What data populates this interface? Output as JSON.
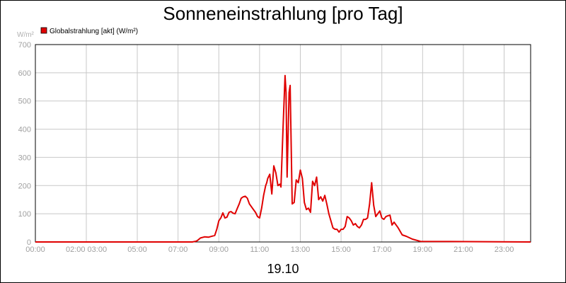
{
  "chart_data": {
    "type": "line",
    "title": "Sonneneinstrahlung [pro Tag]",
    "ylabel": "W/m²",
    "xlabel": "19.10",
    "ylim": [
      0,
      700
    ],
    "xlim": [
      0,
      24.3
    ],
    "yticks": [
      0,
      100,
      200,
      300,
      400,
      500,
      600,
      700
    ],
    "xticks": [
      {
        "label": "00:00",
        "value": 0
      },
      {
        "label": "02:00 03:00",
        "value": 2.5
      },
      {
        "label": "05:00",
        "value": 5
      },
      {
        "label": "07:00",
        "value": 7
      },
      {
        "label": "09:00",
        "value": 9
      },
      {
        "label": "11:00",
        "value": 11
      },
      {
        "label": "13:00",
        "value": 13
      },
      {
        "label": "15:00",
        "value": 15
      },
      {
        "label": "17:00",
        "value": 17
      },
      {
        "label": "19:00",
        "value": 19
      },
      {
        "label": "21:00",
        "value": 21
      },
      {
        "label": "23:00",
        "value": 23
      }
    ],
    "grid": true,
    "legend_position": "top-left",
    "series": [
      {
        "name": "Globalstrahlung [akt] (W/m²)",
        "color": "#e00000",
        "x": [
          0,
          7.7,
          7.9,
          8.0,
          8.1,
          8.3,
          8.5,
          8.8,
          8.9,
          9.0,
          9.1,
          9.2,
          9.3,
          9.4,
          9.5,
          9.6,
          9.7,
          9.8,
          9.9,
          10.0,
          10.1,
          10.2,
          10.3,
          10.4,
          10.5,
          10.7,
          10.8,
          10.9,
          11.0,
          11.1,
          11.2,
          11.3,
          11.35,
          11.4,
          11.5,
          11.6,
          11.7,
          11.8,
          11.9,
          12.0,
          12.05,
          12.15,
          12.25,
          12.3,
          12.35,
          12.45,
          12.5,
          12.6,
          12.7,
          12.8,
          12.9,
          13.0,
          13.1,
          13.2,
          13.3,
          13.4,
          13.5,
          13.6,
          13.7,
          13.8,
          13.9,
          14.0,
          14.1,
          14.2,
          14.3,
          14.4,
          14.5,
          14.6,
          14.7,
          14.8,
          14.9,
          15.0,
          15.1,
          15.2,
          15.3,
          15.4,
          15.5,
          15.6,
          15.7,
          15.8,
          15.9,
          16.0,
          16.1,
          16.2,
          16.3,
          16.4,
          16.5,
          16.6,
          16.7,
          16.8,
          16.9,
          17.0,
          17.1,
          17.2,
          17.3,
          17.4,
          17.5,
          17.6,
          17.8,
          18.0,
          18.2,
          18.5,
          18.9,
          24.3
        ],
        "y": [
          0,
          0,
          3,
          8,
          14,
          18,
          17,
          23,
          45,
          75,
          85,
          103,
          85,
          88,
          105,
          108,
          102,
          100,
          118,
          135,
          155,
          160,
          162,
          155,
          135,
          115,
          105,
          90,
          85,
          120,
          165,
          200,
          210,
          225,
          240,
          170,
          270,
          245,
          200,
          205,
          195,
          400,
          590,
          530,
          230,
          530,
          555,
          135,
          140,
          220,
          210,
          255,
          225,
          140,
          115,
          120,
          105,
          215,
          200,
          230,
          150,
          160,
          145,
          165,
          135,
          100,
          75,
          50,
          45,
          45,
          35,
          45,
          45,
          55,
          90,
          85,
          75,
          60,
          65,
          55,
          50,
          60,
          80,
          80,
          85,
          135,
          210,
          130,
          90,
          100,
          110,
          85,
          80,
          90,
          93,
          95,
          60,
          70,
          50,
          25,
          20,
          10,
          2,
          0
        ]
      }
    ],
    "date_label": "19.10"
  }
}
